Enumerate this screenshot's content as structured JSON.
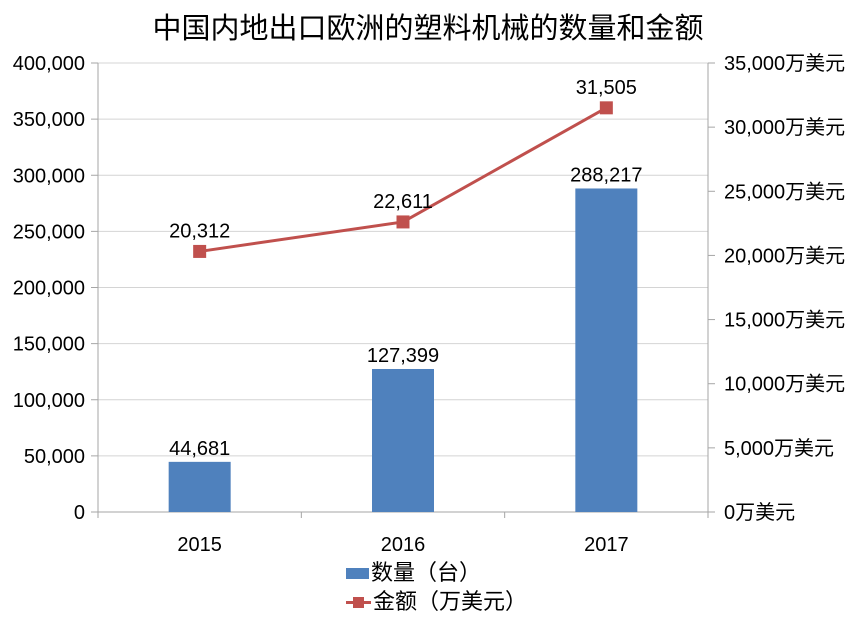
{
  "chart_data": {
    "type": "combo",
    "title": "中国内地出口欧洲的塑料机械的数量和金额",
    "categories": [
      "2015",
      "2016",
      "2017"
    ],
    "series": [
      {
        "name": "数量（台）",
        "type": "bar",
        "axis": "left",
        "color": "#4f81bd",
        "values": [
          44681,
          127399,
          288217
        ],
        "labels": [
          "44,681",
          "127,399",
          "288,217"
        ]
      },
      {
        "name": "金额（万美元）",
        "type": "line",
        "axis": "right",
        "color": "#c0504d",
        "values": [
          20312,
          22611,
          31505
        ],
        "labels": [
          "20,312",
          "22,611",
          "31,505"
        ]
      }
    ],
    "left_axis": {
      "min": 0,
      "max": 400000,
      "step": 50000,
      "tick_labels": [
        "0",
        "50,000",
        "100,000",
        "150,000",
        "200,000",
        "250,000",
        "300,000",
        "350,000",
        "400,000"
      ]
    },
    "right_axis": {
      "min": 0,
      "max": 35000,
      "step": 5000,
      "unit": "万美元",
      "tick_labels": [
        "0万美元",
        "5,000万美元",
        "10,000万美元",
        "15,000万美元",
        "20,000万美元",
        "25,000万美元",
        "30,000万美元",
        "35,000万美元"
      ]
    },
    "legend": [
      {
        "label": "数量（台）",
        "color": "#4f81bd",
        "marker": "bar"
      },
      {
        "label": "金额（万美元）",
        "color": "#c0504d",
        "marker": "line-square"
      }
    ],
    "grid": "horizontal",
    "legend_position": "bottom",
    "colors": {
      "gridline": "#d4d4d4",
      "axis": "#a6a6a6",
      "background": "#ffffff",
      "text": "#000000"
    }
  }
}
